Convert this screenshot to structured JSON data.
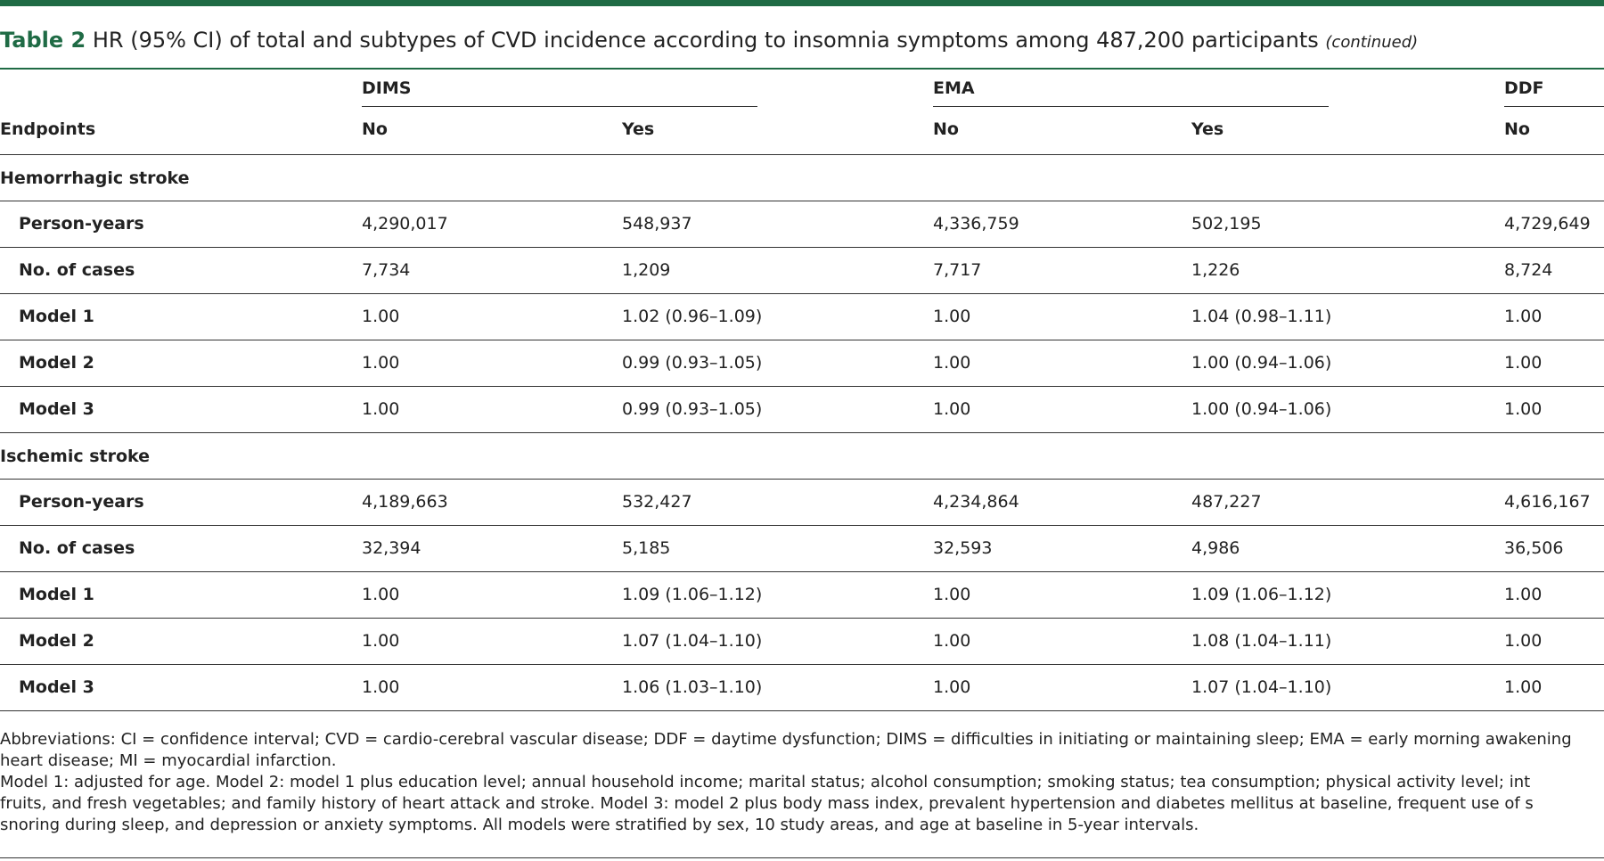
{
  "title": {
    "label": "Table 2",
    "text": "HR (95% CI) of total and subtypes of CVD incidence according to insomnia symptoms among 487,200 participants",
    "note": "(continued)"
  },
  "table": {
    "group_headers": [
      "DIMS",
      "EMA",
      "DDF"
    ],
    "headers": [
      "Endpoints",
      "No",
      "Yes",
      "No",
      "Yes",
      "No"
    ],
    "sections": [
      {
        "title": "Hemorrhagic stroke",
        "rows": [
          [
            "Person-years",
            "4,290,017",
            "548,937",
            "4,336,759",
            "502,195",
            "4,729,649"
          ],
          [
            "No. of cases",
            "7,734",
            "1,209",
            "7,717",
            "1,226",
            "8,724"
          ],
          [
            "Model 1",
            "1.00",
            "1.02 (0.96–1.09)",
            "1.00",
            "1.04 (0.98–1.11)",
            "1.00"
          ],
          [
            "Model 2",
            "1.00",
            "0.99 (0.93–1.05)",
            "1.00",
            "1.00 (0.94–1.06)",
            "1.00"
          ],
          [
            "Model 3",
            "1.00",
            "0.99 (0.93–1.05)",
            "1.00",
            "1.00 (0.94–1.06)",
            "1.00"
          ]
        ]
      },
      {
        "title": "Ischemic stroke",
        "rows": [
          [
            "Person-years",
            "4,189,663",
            "532,427",
            "4,234,864",
            "487,227",
            "4,616,167"
          ],
          [
            "No. of cases",
            "32,394",
            "5,185",
            "32,593",
            "4,986",
            "36,506"
          ],
          [
            "Model 1",
            "1.00",
            "1.09 (1.06–1.12)",
            "1.00",
            "1.09 (1.06–1.12)",
            "1.00"
          ],
          [
            "Model 2",
            "1.00",
            "1.07 (1.04–1.10)",
            "1.00",
            "1.08 (1.04–1.11)",
            "1.00"
          ],
          [
            "Model 3",
            "1.00",
            "1.06 (1.03–1.10)",
            "1.00",
            "1.07 (1.04–1.10)",
            "1.00"
          ]
        ]
      }
    ]
  },
  "footnotes": [
    "Abbreviations: CI = confidence interval; CVD = cardio-cerebral vascular disease; DDF = daytime dysfunction; DIMS = difficulties in initiating or maintaining sleep; EMA = early morning awakening",
    "heart disease; MI = myocardial infarction.",
    "Model 1: adjusted for age. Model 2: model 1 plus education level; annual household income; marital status; alcohol consumption; smoking status; tea consumption; physical activity level; int",
    "fruits, and fresh vegetables; and family history of heart attack and stroke. Model 3: model 2 plus body mass index, prevalent hypertension and diabetes mellitus at baseline, frequent use of s",
    "snoring during sleep, and depression or anxiety symptoms. All models were stratified by sex, 10 study areas, and age at baseline in 5-year intervals."
  ]
}
